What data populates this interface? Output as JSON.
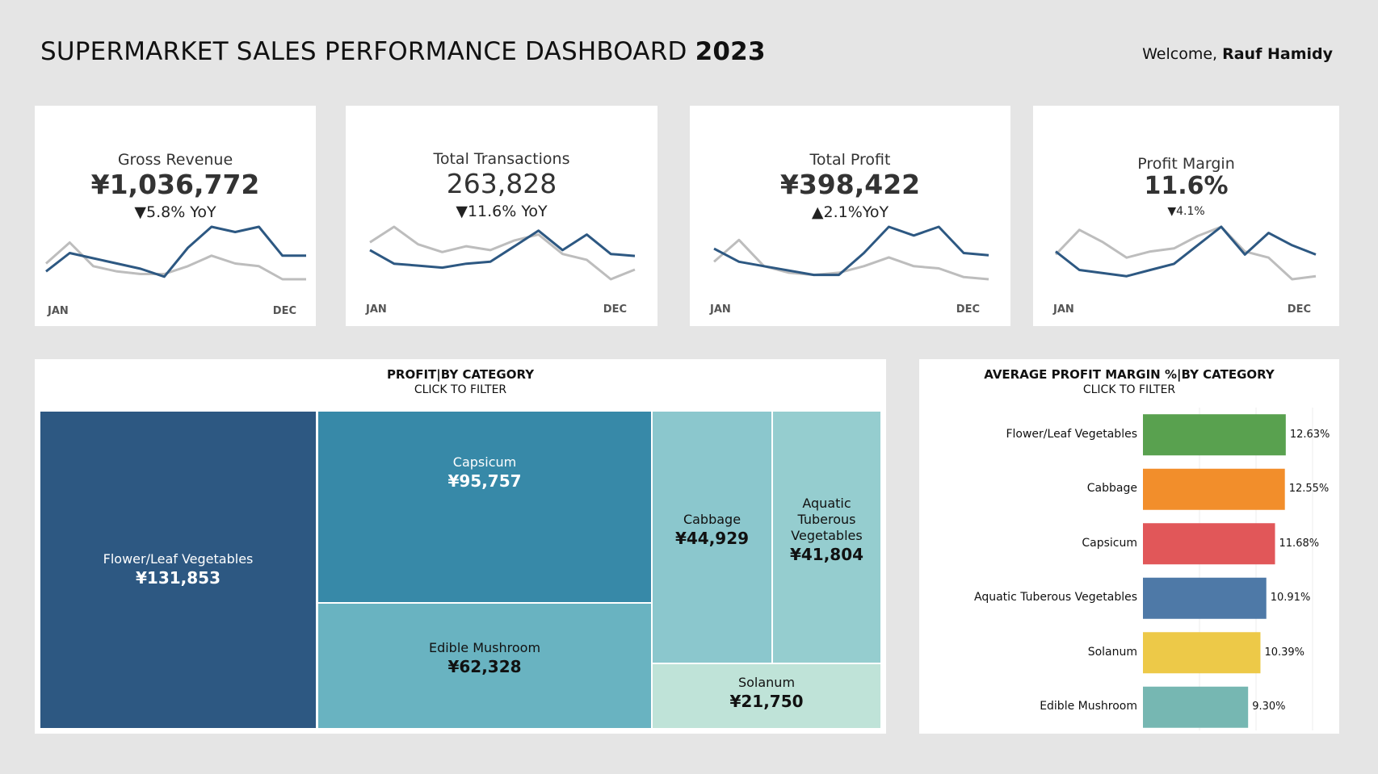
{
  "header": {
    "title_main": "SUPERMARKET SALES PERFORMANCE DASHBOARD",
    "title_year": "2023",
    "welcome_prefix": "Welcome,",
    "user_name": "Rauf Hamidy"
  },
  "kpis": [
    {
      "name": "Gross Revenue",
      "value": "¥1,036,772",
      "delta": "▼5.8% YoY",
      "axis_start": "JAN",
      "axis_end": "DEC",
      "current": [
        55,
        62,
        60,
        58,
        56,
        53,
        64,
        72,
        70,
        72,
        61,
        61
      ],
      "previous": [
        58,
        66,
        57,
        55,
        54,
        54,
        57,
        61,
        58,
        57,
        52,
        52
      ]
    },
    {
      "name": "Total Transactions",
      "value": "263,828",
      "delta": "▼11.6% YoY",
      "axis_start": "JAN",
      "axis_end": "DEC",
      "current": [
        64,
        57,
        56,
        55,
        57,
        58,
        66,
        74,
        64,
        72,
        62,
        61
      ],
      "previous": [
        68,
        76,
        67,
        63,
        66,
        64,
        69,
        72,
        62,
        59,
        49,
        54
      ]
    },
    {
      "name": "Total Profit",
      "value": "¥398,422",
      "delta": "▲2.1%YoY",
      "axis_start": "JAN",
      "axis_end": "DEC",
      "current": [
        52,
        46,
        44,
        42,
        40,
        40,
        50,
        62,
        58,
        62,
        50,
        49
      ],
      "previous": [
        46,
        56,
        44,
        41,
        40,
        41,
        44,
        48,
        44,
        43,
        39,
        38
      ]
    },
    {
      "name": "Profit Margin",
      "value": "11.6%",
      "delta": "▼4.1%",
      "axis_start": "JAN",
      "axis_end": "DEC",
      "current": [
        62,
        56,
        55,
        54,
        56,
        58,
        64,
        70,
        61,
        68,
        64,
        61
      ],
      "previous": [
        61,
        69,
        65,
        60,
        62,
        63,
        67,
        70,
        62,
        60,
        53,
        54
      ]
    }
  ],
  "treemap": {
    "title": "PROFIT|BY CATEGORY",
    "subtitle": "CLICK TO FILTER",
    "items": [
      {
        "label": "Flower/Leaf Vegetables",
        "value": "¥131,853",
        "color": "#2d5882"
      },
      {
        "label": "Capsicum",
        "value": "¥95,757",
        "color": "#3789a8"
      },
      {
        "label": "Edible Mushroom",
        "value": "¥62,328",
        "color": "#69b3c1"
      },
      {
        "label": "Cabbage",
        "value": "¥44,929",
        "color": "#8bc7cd"
      },
      {
        "label": "Aquatic Tuberous Vegetables",
        "value": "¥41,804",
        "color": "#95cdcf"
      },
      {
        "label": "Solanum",
        "value": "¥21,750",
        "color": "#bfe3d8"
      }
    ]
  },
  "chart_data": {
    "type": "bar",
    "title": "AVERAGE PROFIT MARGIN %|BY CATEGORY",
    "subtitle": "CLICK TO FILTER",
    "categories": [
      "Flower/Leaf Vegetables",
      "Cabbage",
      "Capsicum",
      "Aquatic Tuberous Vegetables",
      "Solanum",
      "Edible Mushroom"
    ],
    "values": [
      12.63,
      12.55,
      11.68,
      10.91,
      10.39,
      9.3
    ],
    "value_labels": [
      "12.63%",
      "12.55%",
      "11.68%",
      "10.91%",
      "10.39%",
      "9.30%"
    ],
    "colors": [
      "#59a14f",
      "#f28e2b",
      "#e15759",
      "#4e79a7",
      "#edc948",
      "#76b7b2"
    ],
    "xlim": [
      0,
      15
    ],
    "orientation": "horizontal"
  },
  "sparkline_colors": {
    "current": "#2d5882",
    "previous": "#bdbdbd"
  }
}
